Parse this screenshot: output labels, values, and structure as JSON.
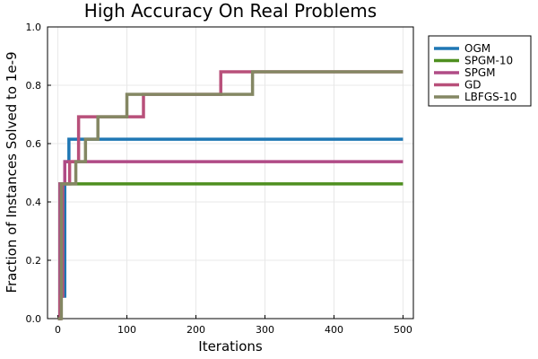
{
  "chart_data": {
    "type": "line",
    "title": "High Accuracy On Real Problems",
    "xlabel": "Iterations",
    "ylabel": "Fraction of Instances Solved  to 1e-9",
    "xlim": [
      -15,
      515
    ],
    "ylim": [
      0,
      1
    ],
    "xticks": [
      0,
      100,
      200,
      300,
      400,
      500
    ],
    "yticks": [
      0.0,
      0.2,
      0.4,
      0.6,
      0.8,
      1.0
    ],
    "xtick_labels": [
      "0",
      "100",
      "200",
      "300",
      "400",
      "500"
    ],
    "ytick_labels": [
      "0.0",
      "0.2",
      "0.4",
      "0.6",
      "0.8",
      "1.0"
    ],
    "grid": true,
    "legend_position": "top-right",
    "series": [
      {
        "name": "OGM",
        "color": "#1f77b4",
        "points": [
          [
            0,
            0
          ],
          [
            3,
            0
          ],
          [
            3,
            0.077
          ],
          [
            10,
            0.077
          ],
          [
            10,
            0.538
          ],
          [
            16,
            0.538
          ],
          [
            16,
            0.615
          ],
          [
            500,
            0.615
          ]
        ]
      },
      {
        "name": "SPGM-10",
        "color": "#4e8f1f",
        "points": [
          [
            0,
            0
          ],
          [
            3,
            0
          ],
          [
            3,
            0.462
          ],
          [
            500,
            0.462
          ]
        ]
      },
      {
        "name": "SPGM",
        "color": "#b04b86",
        "points": [
          [
            0,
            0
          ],
          [
            3,
            0
          ],
          [
            3,
            0.462
          ],
          [
            10,
            0.462
          ],
          [
            10,
            0.538
          ],
          [
            500,
            0.538
          ]
        ]
      },
      {
        "name": "GD",
        "color": "#b8507a",
        "points": [
          [
            0,
            0
          ],
          [
            3,
            0
          ],
          [
            3,
            0.077
          ],
          [
            7,
            0.077
          ],
          [
            7,
            0.462
          ],
          [
            17,
            0.462
          ],
          [
            17,
            0.538
          ],
          [
            30,
            0.538
          ],
          [
            30,
            0.692
          ],
          [
            124,
            0.692
          ],
          [
            124,
            0.769
          ],
          [
            236,
            0.769
          ],
          [
            236,
            0.846
          ],
          [
            500,
            0.846
          ]
        ]
      },
      {
        "name": "LBFGS-10",
        "color": "#848763",
        "points": [
          [
            0,
            0
          ],
          [
            5,
            0
          ],
          [
            5,
            0.462
          ],
          [
            26,
            0.462
          ],
          [
            26,
            0.538
          ],
          [
            40,
            0.538
          ],
          [
            40,
            0.615
          ],
          [
            58,
            0.615
          ],
          [
            58,
            0.692
          ],
          [
            100,
            0.692
          ],
          [
            100,
            0.769
          ],
          [
            282,
            0.769
          ],
          [
            282,
            0.846
          ],
          [
            500,
            0.846
          ]
        ]
      }
    ]
  }
}
